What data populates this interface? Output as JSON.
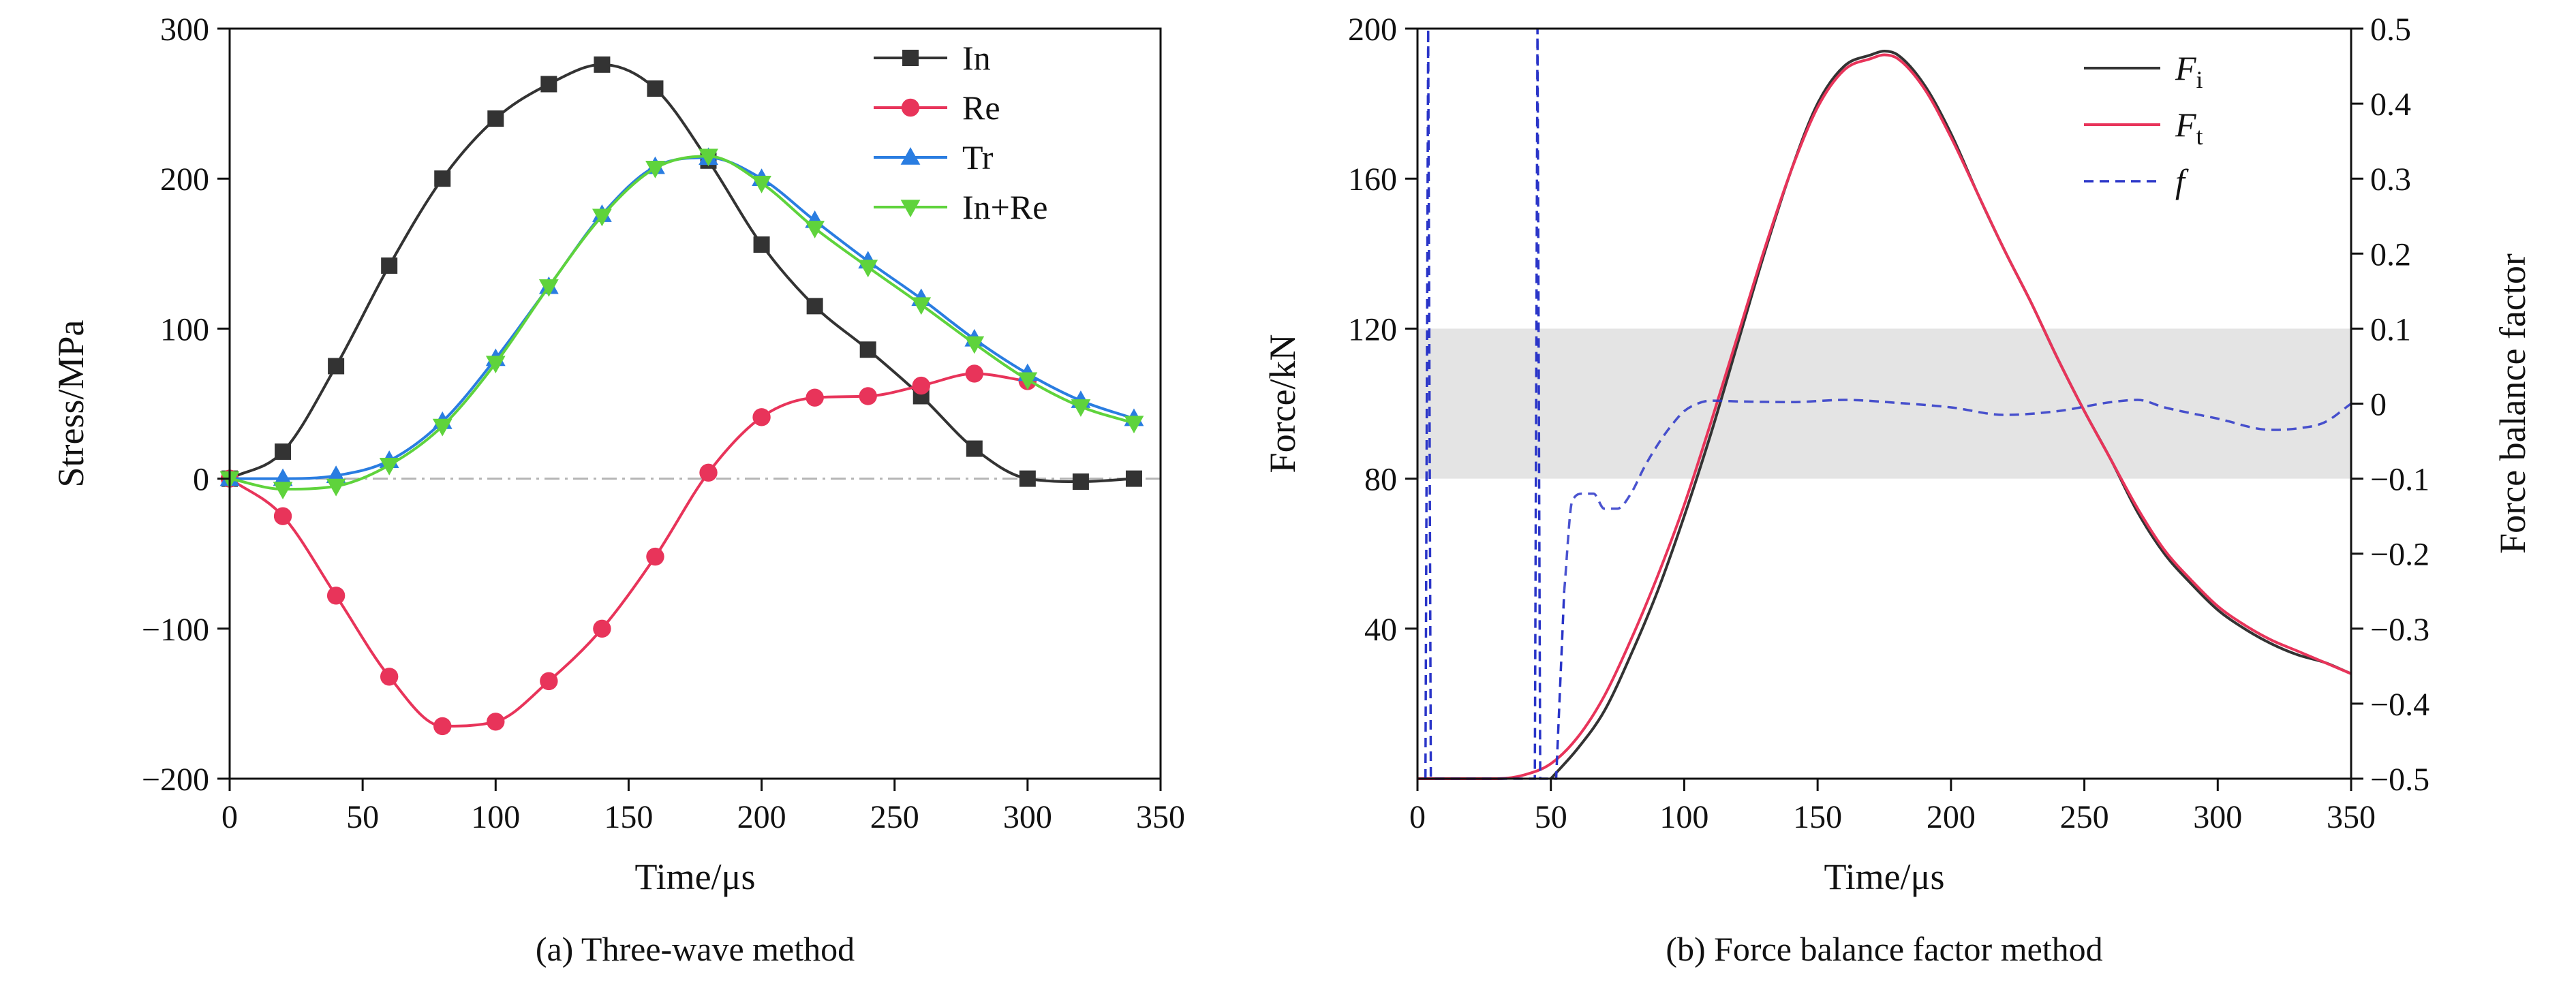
{
  "chart_data": [
    {
      "type": "line",
      "caption": "(a) Three-wave method",
      "xlabel": "Time/μs",
      "ylabel": "Stress/MPa",
      "xlim": [
        0,
        350
      ],
      "ylim": [
        -200,
        300
      ],
      "xticks": [
        0,
        50,
        100,
        150,
        200,
        250,
        300,
        350
      ],
      "yticks": [
        -200,
        -100,
        0,
        100,
        200,
        300
      ],
      "ytick_labels": [
        "−200",
        "−100",
        "0",
        "100",
        "200",
        "300"
      ],
      "legend_position": "top-right",
      "zero_line": true,
      "series": [
        {
          "name": "In",
          "color": "#333333",
          "marker": "square",
          "x": [
            0,
            20,
            40,
            60,
            80,
            100,
            120,
            140,
            160,
            180,
            200,
            220,
            240,
            260,
            280,
            300,
            320,
            340
          ],
          "y": [
            0,
            18,
            75,
            142,
            200,
            240,
            263,
            276,
            260,
            212,
            156,
            115,
            86,
            55,
            20,
            0,
            -2,
            0
          ]
        },
        {
          "name": "Re",
          "color": "#e8345a",
          "marker": "circle",
          "x": [
            0,
            20,
            40,
            60,
            80,
            100,
            120,
            140,
            160,
            180,
            200,
            220,
            240,
            260,
            280,
            300
          ],
          "y": [
            0,
            -25,
            -78,
            -132,
            -165,
            -162,
            -135,
            -100,
            -52,
            4,
            41,
            54,
            55,
            62,
            70,
            65
          ]
        },
        {
          "name": "Tr",
          "color": "#2a7de1",
          "marker": "triangle-up",
          "x": [
            0,
            20,
            40,
            60,
            80,
            100,
            120,
            140,
            160,
            180,
            200,
            220,
            240,
            260,
            280,
            300,
            320,
            340
          ],
          "y": [
            0,
            0,
            2,
            12,
            38,
            80,
            128,
            176,
            208,
            214,
            200,
            172,
            145,
            120,
            93,
            70,
            52,
            40
          ]
        },
        {
          "name": "In+Re",
          "color": "#5fd33c",
          "marker": "triangle-down",
          "x": [
            0,
            20,
            40,
            60,
            80,
            100,
            120,
            140,
            160,
            180,
            200,
            220,
            240,
            260,
            280,
            300,
            320,
            340
          ],
          "y": [
            0,
            -7,
            -5,
            9,
            35,
            77,
            128,
            175,
            207,
            215,
            197,
            167,
            141,
            116,
            90,
            66,
            48,
            37
          ]
        }
      ]
    },
    {
      "type": "line",
      "caption": "(b) Force balance factor method",
      "xlabel": "Time/μs",
      "ylabel": "Force/kN",
      "y2label": "Force balance factor",
      "xlim": [
        0,
        350
      ],
      "ylim": [
        0,
        200
      ],
      "y2lim": [
        -0.5,
        0.5
      ],
      "xticks": [
        0,
        50,
        100,
        150,
        200,
        250,
        300,
        350
      ],
      "yticks": [
        40,
        80,
        120,
        160,
        200
      ],
      "y2ticks": [
        -0.5,
        -0.4,
        -0.3,
        -0.2,
        -0.1,
        0,
        0.1,
        0.2,
        0.3,
        0.4,
        0.5
      ],
      "y2tick_labels": [
        "−0.5",
        "−0.4",
        "−0.3",
        "−0.2",
        "−0.1",
        "0",
        "0.1",
        "0.2",
        "0.3",
        "0.4",
        "0.5"
      ],
      "shaded_band_y2": [
        -0.1,
        0.1
      ],
      "legend_position": "top-right",
      "series": [
        {
          "name": "Fi",
          "name_main": "F",
          "name_sub": "i",
          "color": "#333333",
          "style": "solid",
          "axis": "left",
          "x": [
            50,
            60,
            70,
            80,
            90,
            100,
            110,
            120,
            130,
            140,
            150,
            160,
            170,
            175,
            180,
            190,
            200,
            210,
            220,
            230,
            240,
            250,
            260,
            270,
            280,
            290,
            300,
            310,
            320,
            330,
            340,
            350
          ],
          "y": [
            0,
            8,
            18,
            33,
            50,
            70,
            92,
            116,
            140,
            162,
            180,
            190,
            193,
            194,
            193,
            185,
            172,
            156,
            141,
            127,
            112,
            98,
            85,
            71,
            60,
            52,
            45,
            40,
            36,
            33,
            31,
            28
          ]
        },
        {
          "name": "Ft",
          "name_main": "F",
          "name_sub": "t",
          "color": "#e8345a",
          "style": "solid",
          "axis": "left",
          "x": [
            0,
            30,
            40,
            50,
            60,
            70,
            80,
            90,
            100,
            110,
            120,
            130,
            140,
            150,
            160,
            170,
            175,
            180,
            190,
            200,
            210,
            220,
            230,
            240,
            250,
            260,
            270,
            280,
            290,
            300,
            310,
            320,
            330,
            340,
            350
          ],
          "y": [
            0,
            0,
            1,
            4,
            11,
            22,
            37,
            54,
            73,
            95,
            118,
            141,
            162,
            179,
            189,
            192,
            193,
            192,
            184,
            171,
            156,
            141,
            127,
            112,
            98,
            85,
            72,
            61,
            53,
            46,
            41,
            37,
            34,
            31,
            28
          ]
        },
        {
          "name": "f",
          "name_main": "f",
          "name_sub": "",
          "color": "#2a35c8",
          "style": "dashed",
          "axis": "right",
          "x": [
            3,
            4,
            5,
            44,
            45,
            46,
            52,
            55,
            58,
            62,
            66,
            70,
            75,
            80,
            85,
            90,
            95,
            100,
            105,
            110,
            120,
            140,
            160,
            180,
            200,
            220,
            240,
            260,
            270,
            280,
            300,
            320,
            330,
            340,
            350
          ],
          "y": [
            -0.5,
            0.5,
            -0.5,
            -0.5,
            0.5,
            -0.5,
            -0.5,
            -0.25,
            -0.13,
            -0.12,
            -0.12,
            -0.14,
            -0.14,
            -0.12,
            -0.085,
            -0.055,
            -0.03,
            -0.01,
            0,
            0.004,
            0.003,
            0.002,
            0.005,
            0.001,
            -0.005,
            -0.015,
            -0.01,
            0.002,
            0.005,
            -0.005,
            -0.02,
            -0.035,
            -0.033,
            -0.025,
            0
          ]
        }
      ]
    }
  ]
}
